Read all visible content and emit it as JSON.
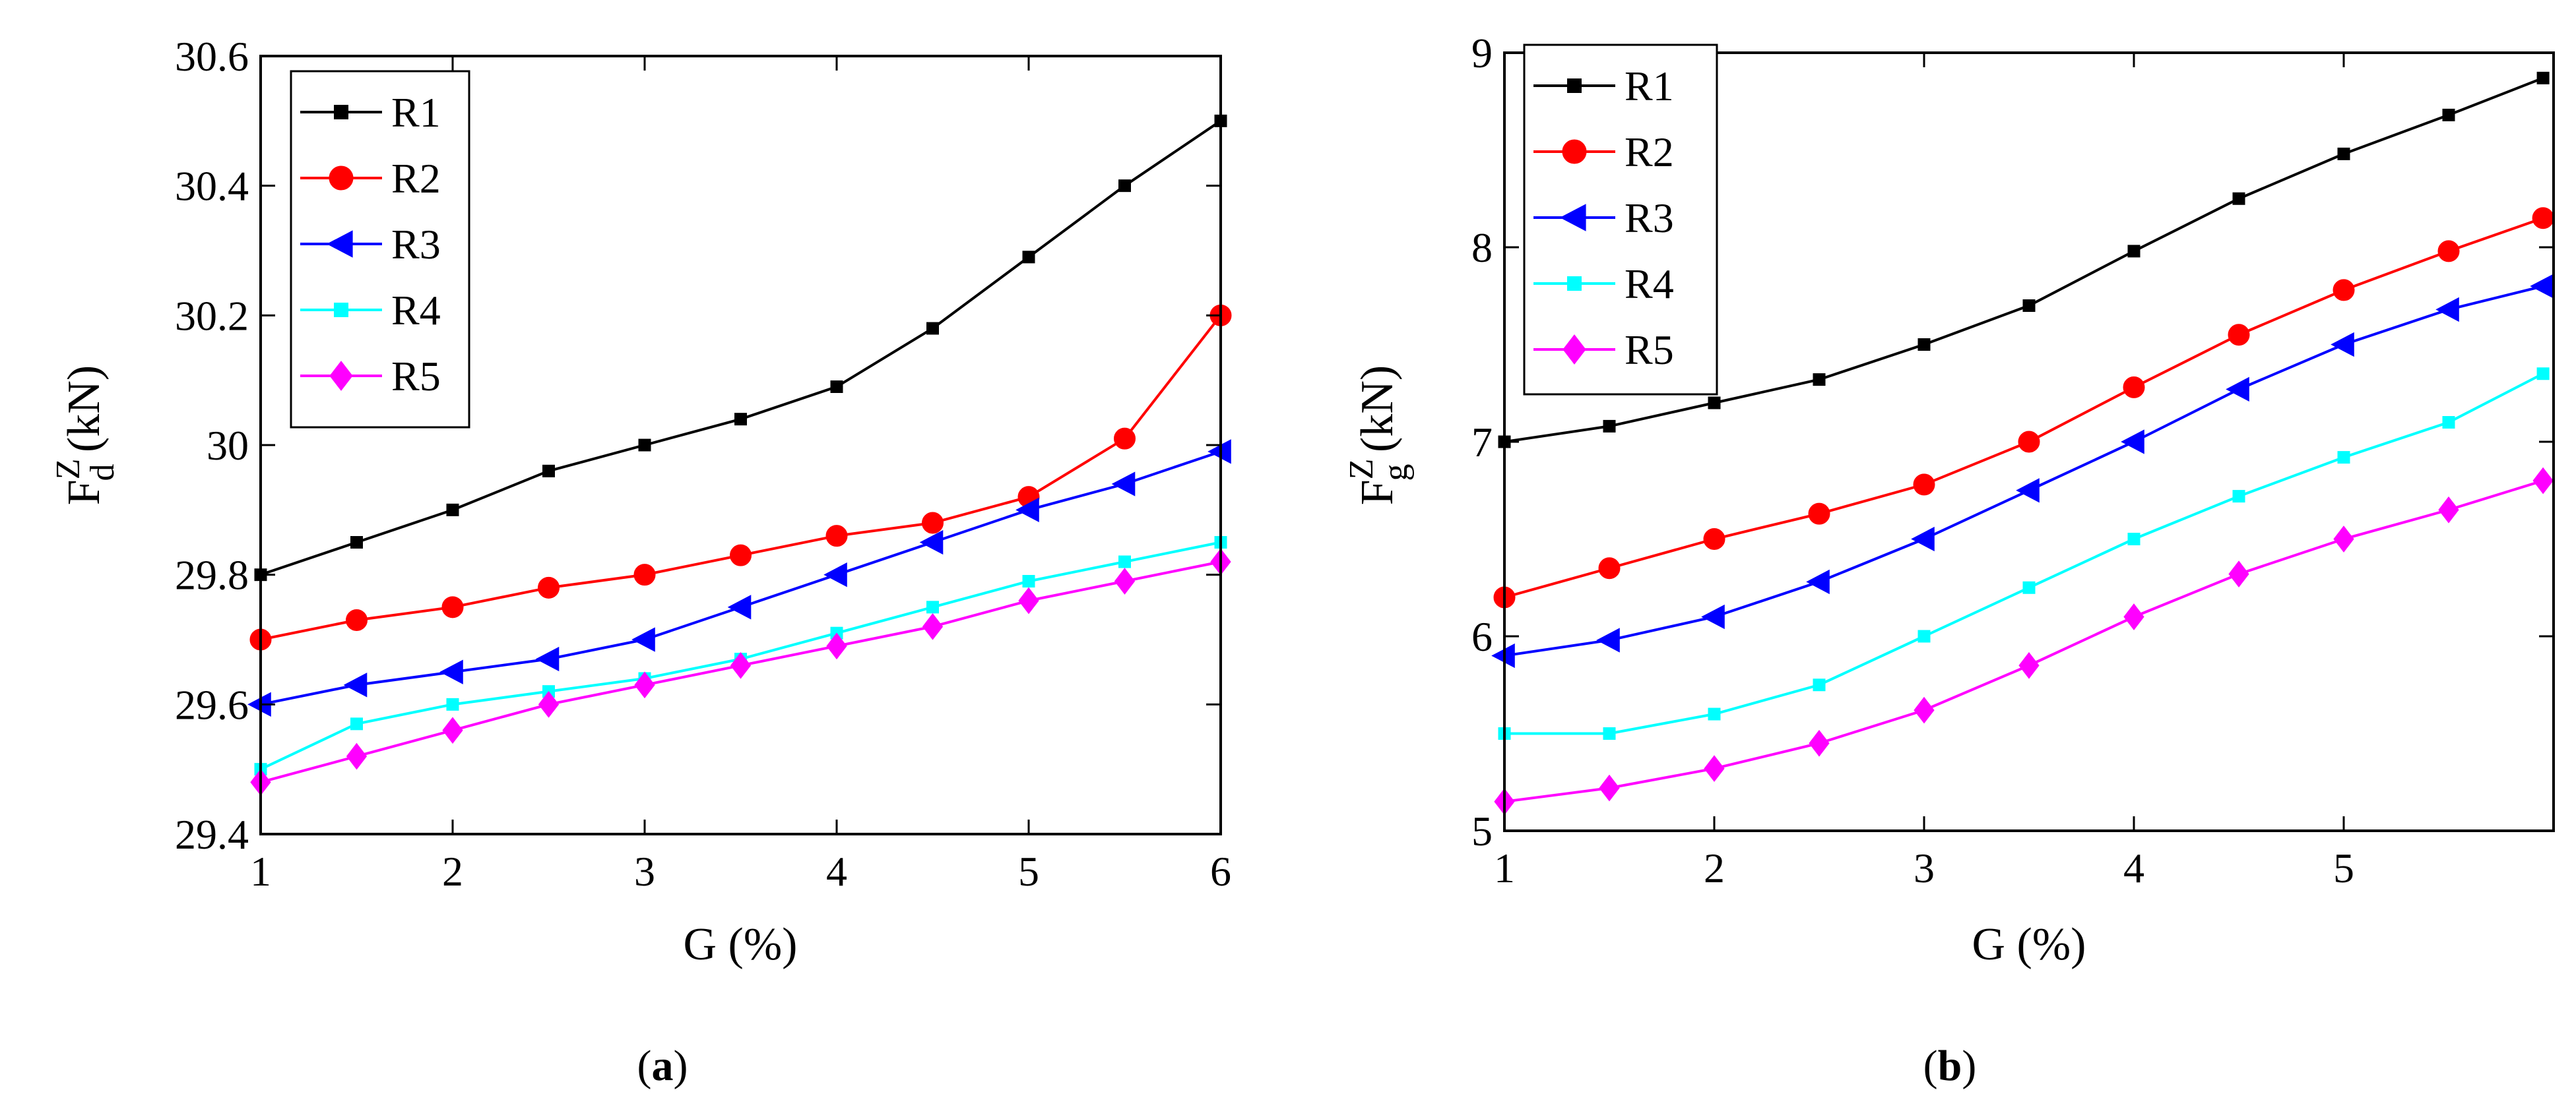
{
  "chart_data": [
    {
      "type": "line",
      "panel_label": "a",
      "title": "",
      "xlabel": "G (%)",
      "ylabel": {
        "base": "F",
        "superscript": "Z",
        "subscript": "d",
        "unit": " (kN)"
      },
      "xlim": [
        1,
        6
      ],
      "ylim": [
        29.4,
        30.6
      ],
      "xticks": [
        1,
        2,
        3,
        4,
        5,
        6
      ],
      "xtick_labels": [
        "1",
        "2",
        "3",
        "4",
        "5",
        "6"
      ],
      "yticks": [
        29.4,
        29.6,
        29.8,
        30,
        30.2,
        30.4,
        30.6
      ],
      "ytick_labels": [
        "29.4",
        "29.6",
        "29.8",
        "30",
        "30.2",
        "30.4",
        "30.6"
      ],
      "grid": false,
      "legend_position": "top-left",
      "x": [
        1,
        1.5,
        2,
        2.5,
        3,
        3.5,
        4,
        4.5,
        5,
        5.5,
        6
      ],
      "series": [
        {
          "name": "R1",
          "color": "#000000",
          "marker": "square",
          "values": [
            29.8,
            29.85,
            29.9,
            29.96,
            30.0,
            30.04,
            30.09,
            30.18,
            30.29,
            30.4,
            30.5
          ]
        },
        {
          "name": "R2",
          "color": "#ff0000",
          "marker": "circle",
          "values": [
            29.7,
            29.73,
            29.75,
            29.78,
            29.8,
            29.83,
            29.86,
            29.88,
            29.92,
            30.01,
            30.2
          ]
        },
        {
          "name": "R3",
          "color": "#0000ff",
          "marker": "triangle-left",
          "values": [
            29.6,
            29.63,
            29.65,
            29.67,
            29.7,
            29.75,
            29.8,
            29.85,
            29.9,
            29.94,
            29.99
          ]
        },
        {
          "name": "R4",
          "color": "#00ffff",
          "marker": "square",
          "values": [
            29.5,
            29.57,
            29.6,
            29.62,
            29.64,
            29.67,
            29.71,
            29.75,
            29.79,
            29.82,
            29.85
          ]
        },
        {
          "name": "R5",
          "color": "#ff00ff",
          "marker": "diamond",
          "values": [
            29.48,
            29.52,
            29.56,
            29.6,
            29.63,
            29.66,
            29.69,
            29.72,
            29.76,
            29.79,
            29.82
          ]
        }
      ]
    },
    {
      "type": "line",
      "panel_label": "b",
      "title": "",
      "xlabel": "G (%)",
      "ylabel": {
        "base": "F",
        "superscript": "Z",
        "subscript": "g",
        "unit": " (kN)"
      },
      "xlim": [
        1,
        6
      ],
      "ylim": [
        5,
        9
      ],
      "xticks": [
        1,
        2,
        3,
        4,
        5
      ],
      "xtick_labels": [
        "1",
        "2",
        "3",
        "4",
        "5"
      ],
      "yticks": [
        5,
        6,
        7,
        8,
        9
      ],
      "ytick_labels": [
        "5",
        "6",
        "7",
        "8",
        "9"
      ],
      "grid": false,
      "legend_position": "top-left",
      "x": [
        1,
        1.5,
        2,
        2.5,
        3,
        3.5,
        4,
        4.5,
        5,
        5.5,
        5.95
      ],
      "series": [
        {
          "name": "R1",
          "color": "#000000",
          "marker": "square",
          "values": [
            7.0,
            7.08,
            7.2,
            7.32,
            7.5,
            7.7,
            7.98,
            8.25,
            8.48,
            8.68,
            8.87
          ]
        },
        {
          "name": "R2",
          "color": "#ff0000",
          "marker": "circle",
          "values": [
            6.2,
            6.35,
            6.5,
            6.63,
            6.78,
            7.0,
            7.28,
            7.55,
            7.78,
            7.98,
            8.15
          ]
        },
        {
          "name": "R3",
          "color": "#0000ff",
          "marker": "triangle-left",
          "values": [
            5.9,
            5.98,
            6.1,
            6.28,
            6.5,
            6.75,
            7.0,
            7.27,
            7.5,
            7.68,
            7.8
          ]
        },
        {
          "name": "R4",
          "color": "#00ffff",
          "marker": "square",
          "values": [
            5.5,
            5.5,
            5.6,
            5.75,
            6.0,
            6.25,
            6.5,
            6.72,
            6.92,
            7.1,
            7.35
          ]
        },
        {
          "name": "R5",
          "color": "#ff00ff",
          "marker": "diamond",
          "values": [
            5.15,
            5.22,
            5.32,
            5.45,
            5.62,
            5.85,
            6.1,
            6.32,
            6.5,
            6.65,
            6.8
          ]
        }
      ]
    }
  ]
}
